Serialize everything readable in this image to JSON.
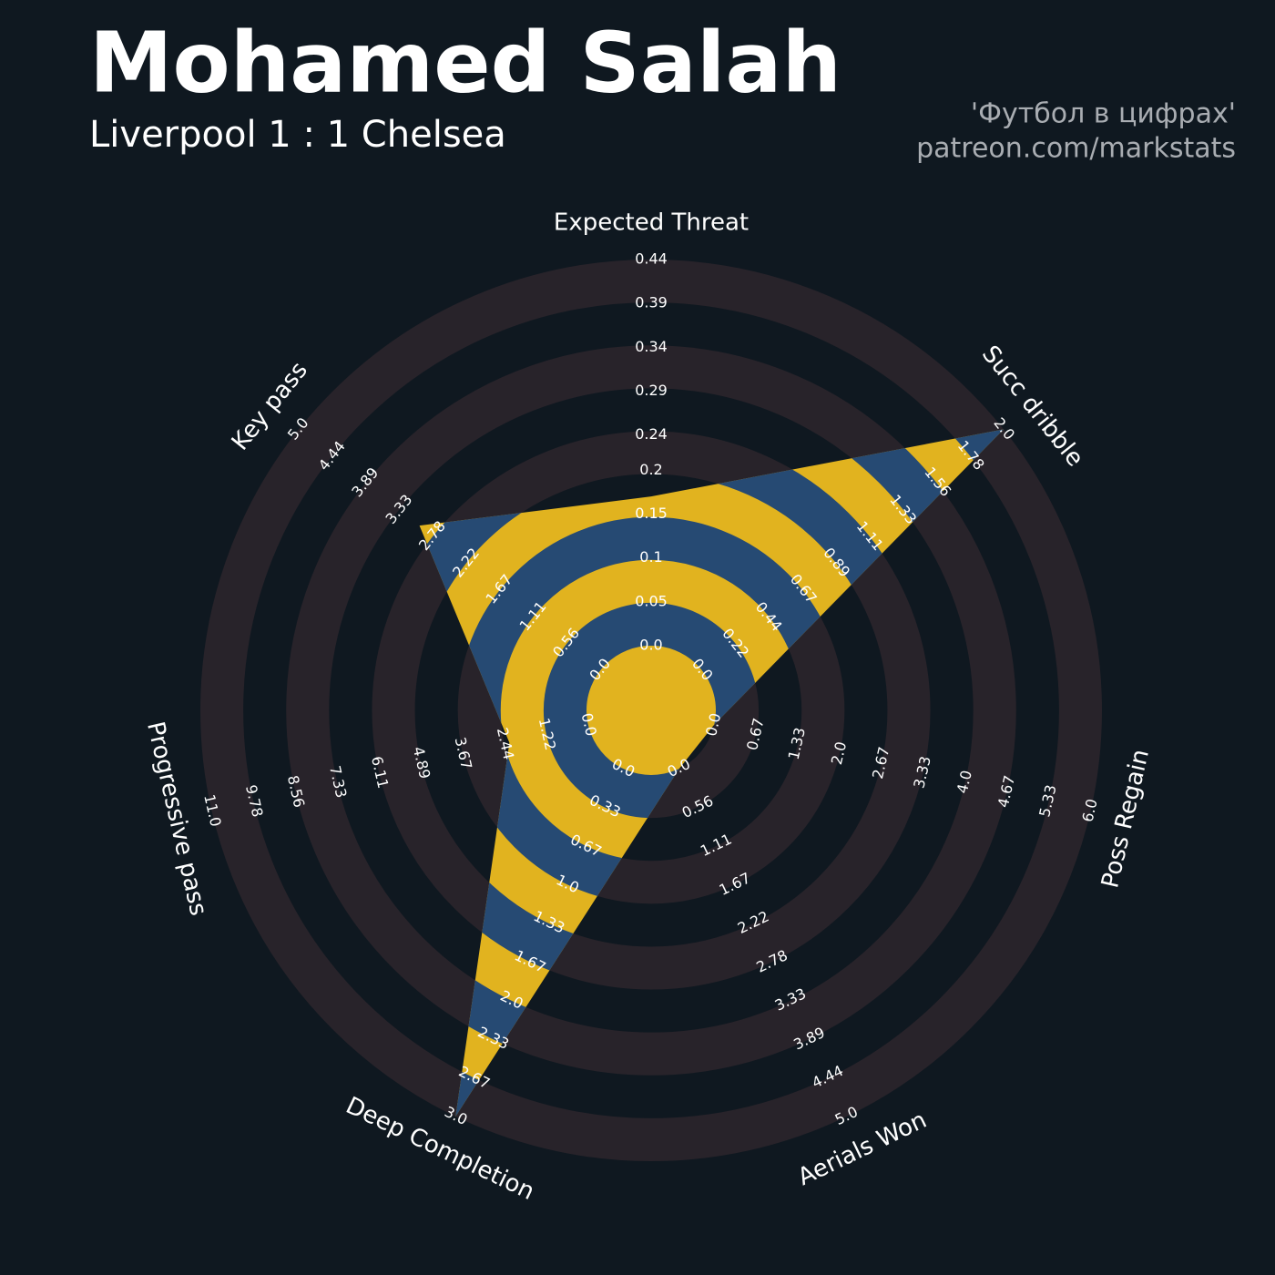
{
  "chart_data": {
    "type": "radar",
    "title": "Mohamed Salah",
    "subtitle": "Liverpool 1 : 1 Chelsea",
    "credits": [
      "'Футбол в цифрах'",
      "patreon.com/markstats"
    ],
    "categories": [
      "Expected Threat",
      "Succ dribble",
      "Poss Regain",
      "Aerials Won",
      "Deep Completion",
      "Progressive pass",
      "Key pass"
    ],
    "values": [
      0.17,
      2.0,
      0,
      0,
      3.0,
      2.3,
      3.0
    ],
    "ranges": [
      [
        0,
        0.44
      ],
      [
        0,
        2
      ],
      [
        0,
        6
      ],
      [
        0,
        5
      ],
      [
        0,
        3
      ],
      [
        0,
        11
      ],
      [
        0,
        5
      ]
    ],
    "ticks": [
      [
        {
          "value": 0,
          "label": "0.0"
        },
        0.05,
        0.1,
        0.15,
        0.2,
        0.24,
        0.29,
        0.34,
        0.39,
        0.44
      ],
      [
        {
          "value": 0,
          "label": "0.0"
        },
        0.22,
        0.44,
        0.67,
        0.89,
        1.11,
        1.33,
        1.56,
        1.78,
        {
          "value": 2,
          "label": "2.0"
        }
      ],
      [
        {
          "value": 0,
          "label": "0.0"
        },
        0.67,
        1.33,
        {
          "value": 2,
          "label": "2.0"
        },
        2.67,
        3.33,
        {
          "value": 4,
          "label": "4.0"
        },
        4.67,
        5.33,
        {
          "value": 6,
          "label": "6.0"
        }
      ],
      [
        {
          "value": 0,
          "label": "0.0"
        },
        0.56,
        1.11,
        1.67,
        2.22,
        2.78,
        3.33,
        3.89,
        4.44,
        {
          "value": 5,
          "label": "5.0"
        }
      ],
      [
        {
          "value": 0,
          "label": "0.0"
        },
        0.33,
        0.67,
        {
          "value": 1,
          "label": "1.0"
        },
        1.33,
        1.67,
        {
          "value": 2,
          "label": "2.0"
        },
        2.33,
        2.67,
        {
          "value": 3,
          "label": "3.0"
        }
      ],
      [
        {
          "value": 0,
          "label": "0.0"
        },
        1.22,
        2.44,
        3.67,
        4.89,
        6.11,
        7.33,
        8.56,
        9.78,
        {
          "value": 11,
          "label": "11.0"
        }
      ],
      [
        {
          "value": 0,
          "label": "0.0"
        },
        0.56,
        1.11,
        1.67,
        2.22,
        2.78,
        3.33,
        3.89,
        4.44,
        {
          "value": 5,
          "label": "5.0"
        }
      ]
    ],
    "color": "#e1b31f",
    "ring_color": "#264a73",
    "background_ring_color": "#28232a"
  }
}
